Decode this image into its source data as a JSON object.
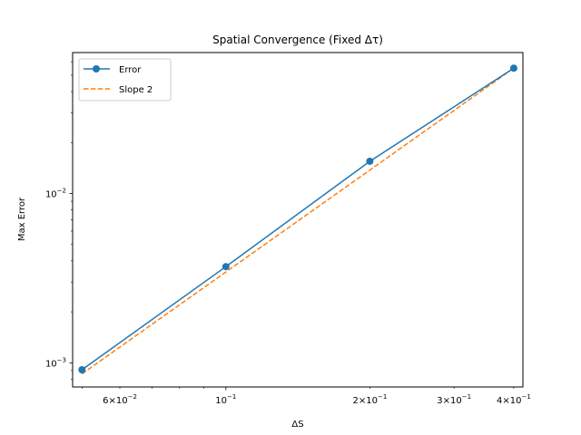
{
  "chart_data": {
    "type": "line",
    "title": "Spatial Convergence (Fixed Δτ)",
    "xlabel": "ΔS",
    "ylabel": "Max Error",
    "xscale": "log",
    "yscale": "log",
    "xlim": [
      0.0478,
      0.418
    ],
    "ylim": [
      0.00072,
      0.068
    ],
    "grid": false,
    "legend_position": "top-left",
    "x_tick_labels": [
      {
        "value": 0.06,
        "mantissa": "6",
        "exponent": "−2"
      },
      {
        "value": 0.1,
        "mantissa": "",
        "exponent": "−1"
      },
      {
        "value": 0.2,
        "mantissa": "2",
        "exponent": "−1"
      },
      {
        "value": 0.3,
        "mantissa": "3",
        "exponent": "−1"
      },
      {
        "value": 0.4,
        "mantissa": "4",
        "exponent": "−1"
      }
    ],
    "y_tick_labels": [
      {
        "value": 0.001,
        "exponent": "−3"
      },
      {
        "value": 0.01,
        "exponent": "−2"
      }
    ],
    "series": [
      {
        "name": "Error",
        "color": "#1f77b4",
        "style": "solid",
        "marker": "circle",
        "x": [
          0.05,
          0.1,
          0.2,
          0.4
        ],
        "y": [
          0.00091,
          0.0037,
          0.0155,
          0.055
        ]
      },
      {
        "name": "Slope 2",
        "color": "#ff7f0e",
        "style": "dashed",
        "marker": "none",
        "x": [
          0.05,
          0.1,
          0.2,
          0.4
        ],
        "y": [
          0.00086,
          0.00344,
          0.01375,
          0.055
        ]
      }
    ]
  }
}
